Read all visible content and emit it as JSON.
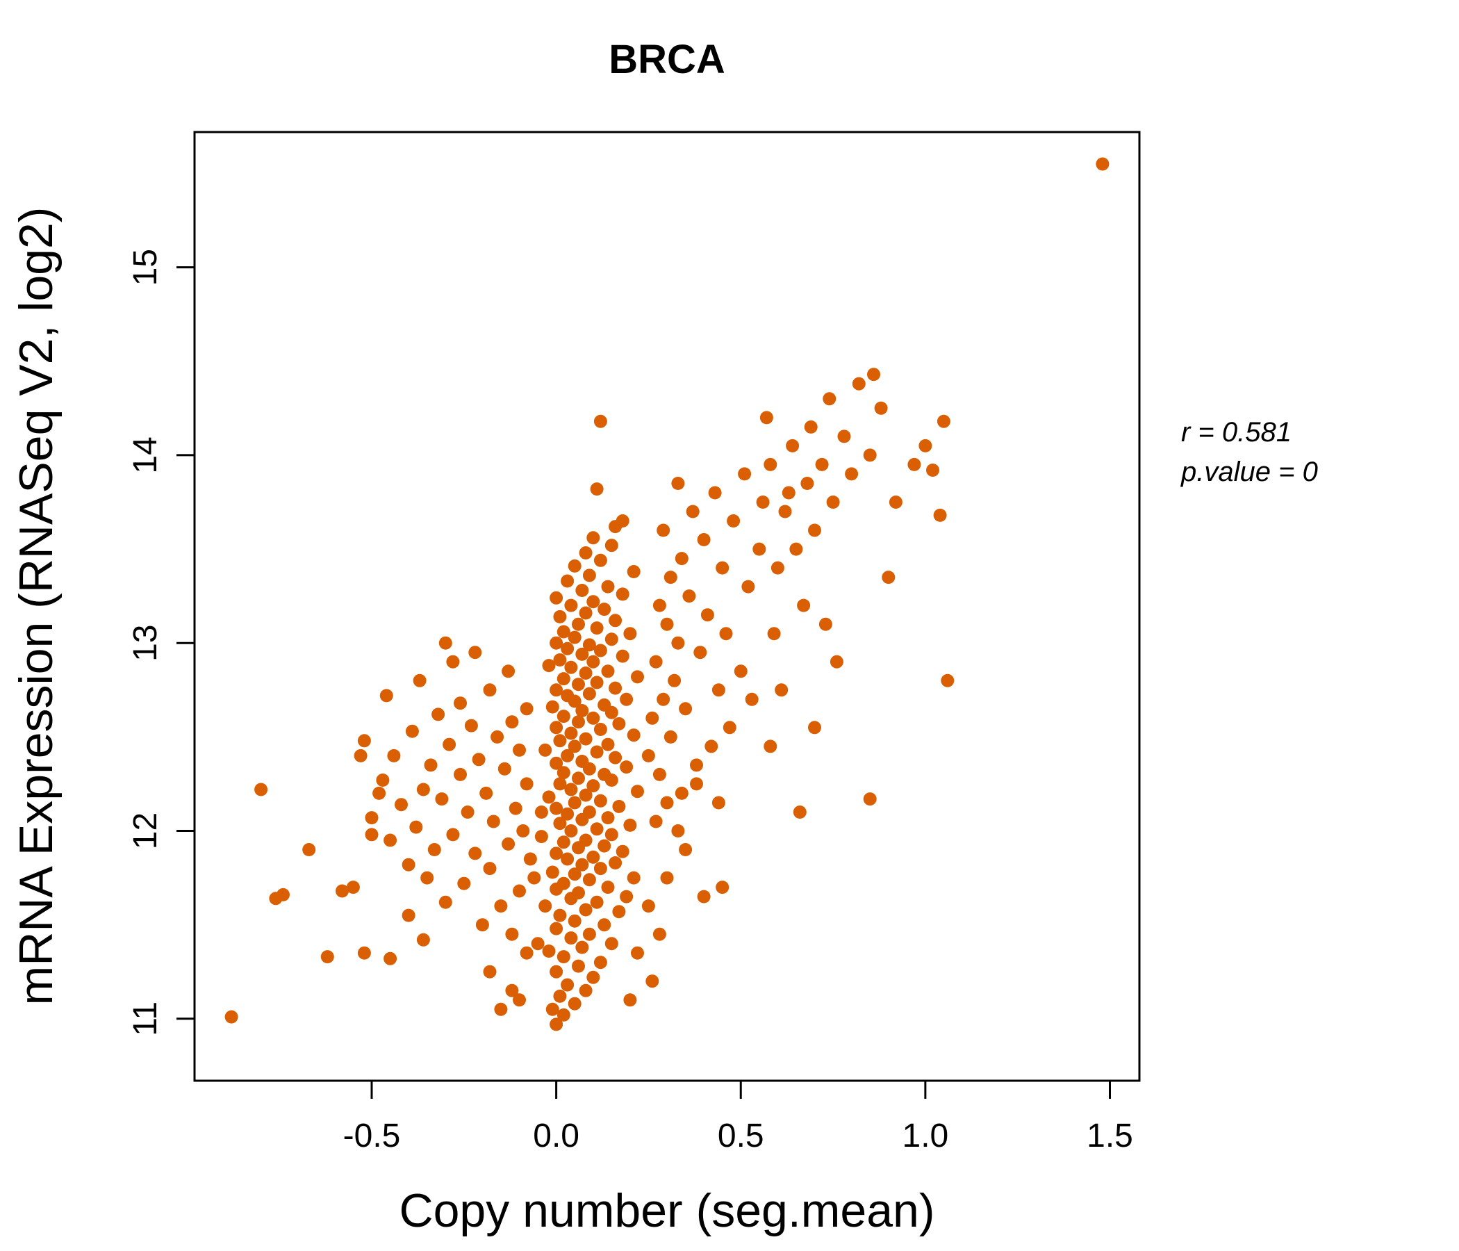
{
  "title": "BRCA",
  "annotation": {
    "line1": "r = 0.581",
    "line2": "p.value = 0"
  },
  "colors": {
    "point": "#D95F02",
    "title": "#D95F02",
    "axis": "#000000"
  },
  "chart_data": {
    "type": "scatter",
    "title": "BRCA",
    "xlabel": "Copy number (seg.mean)",
    "ylabel": "mRNA Expression (RNASeq V2, log2)",
    "xlim": [
      -0.98,
      1.58
    ],
    "ylim": [
      10.67,
      15.72
    ],
    "xticks": [
      -0.5,
      0.0,
      0.5,
      1.0,
      1.5
    ],
    "xtick_labels": [
      "-0.5",
      "0.0",
      "0.5",
      "1.0",
      "1.5"
    ],
    "yticks": [
      11,
      12,
      13,
      14,
      15
    ],
    "ytick_labels": [
      "11",
      "12",
      "13",
      "14",
      "15"
    ],
    "grid": false,
    "legend": "none",
    "r": 0.581,
    "p_value": 0,
    "annotations": [
      "r = 0.581",
      "p.value = 0"
    ],
    "points": [
      [
        0.0,
        10.97
      ],
      [
        0.02,
        11.02
      ],
      [
        -0.01,
        11.05
      ],
      [
        0.05,
        11.08
      ],
      [
        0.01,
        11.12
      ],
      [
        0.08,
        11.15
      ],
      [
        0.03,
        11.18
      ],
      [
        0.1,
        11.22
      ],
      [
        0.0,
        11.25
      ],
      [
        0.06,
        11.28
      ],
      [
        0.12,
        11.3
      ],
      [
        0.02,
        11.33
      ],
      [
        -0.02,
        11.36
      ],
      [
        0.07,
        11.38
      ],
      [
        0.15,
        11.4
      ],
      [
        0.04,
        11.43
      ],
      [
        0.09,
        11.45
      ],
      [
        0.0,
        11.48
      ],
      [
        0.13,
        11.5
      ],
      [
        0.05,
        11.52
      ],
      [
        0.01,
        11.55
      ],
      [
        0.17,
        11.57
      ],
      [
        0.08,
        11.58
      ],
      [
        -0.03,
        11.6
      ],
      [
        0.11,
        11.62
      ],
      [
        0.04,
        11.64
      ],
      [
        0.19,
        11.65
      ],
      [
        0.06,
        11.67
      ],
      [
        0.0,
        11.69
      ],
      [
        0.14,
        11.7
      ],
      [
        0.02,
        11.72
      ],
      [
        0.09,
        11.74
      ],
      [
        0.21,
        11.75
      ],
      [
        0.05,
        11.77
      ],
      [
        -0.01,
        11.78
      ],
      [
        0.12,
        11.8
      ],
      [
        0.07,
        11.82
      ],
      [
        0.16,
        11.83
      ],
      [
        0.03,
        11.85
      ],
      [
        0.1,
        11.86
      ],
      [
        0.0,
        11.88
      ],
      [
        0.18,
        11.89
      ],
      [
        0.06,
        11.91
      ],
      [
        0.13,
        11.92
      ],
      [
        0.02,
        11.94
      ],
      [
        0.08,
        11.95
      ],
      [
        -0.04,
        11.97
      ],
      [
        0.15,
        11.98
      ],
      [
        0.04,
        12.0
      ],
      [
        0.11,
        12.01
      ],
      [
        0.2,
        12.03
      ],
      [
        0.01,
        12.04
      ],
      [
        0.07,
        12.06
      ],
      [
        0.14,
        12.07
      ],
      [
        0.03,
        12.09
      ],
      [
        0.09,
        12.1
      ],
      [
        0.0,
        12.12
      ],
      [
        0.17,
        12.13
      ],
      [
        0.05,
        12.15
      ],
      [
        0.12,
        12.16
      ],
      [
        -0.02,
        12.18
      ],
      [
        0.08,
        12.19
      ],
      [
        0.22,
        12.21
      ],
      [
        0.04,
        12.22
      ],
      [
        0.1,
        12.24
      ],
      [
        0.01,
        12.25
      ],
      [
        0.15,
        12.27
      ],
      [
        0.06,
        12.28
      ],
      [
        0.13,
        12.3
      ],
      [
        0.02,
        12.31
      ],
      [
        0.09,
        12.33
      ],
      [
        0.19,
        12.34
      ],
      [
        0.0,
        12.36
      ],
      [
        0.07,
        12.37
      ],
      [
        0.16,
        12.39
      ],
      [
        0.03,
        12.4
      ],
      [
        0.11,
        12.42
      ],
      [
        -0.03,
        12.43
      ],
      [
        0.05,
        12.45
      ],
      [
        0.14,
        12.46
      ],
      [
        0.01,
        12.48
      ],
      [
        0.08,
        12.49
      ],
      [
        0.21,
        12.51
      ],
      [
        0.04,
        12.52
      ],
      [
        0.12,
        12.54
      ],
      [
        0.0,
        12.55
      ],
      [
        0.17,
        12.57
      ],
      [
        0.06,
        12.58
      ],
      [
        0.1,
        12.6
      ],
      [
        0.02,
        12.61
      ],
      [
        0.15,
        12.63
      ],
      [
        0.07,
        12.64
      ],
      [
        -0.01,
        12.66
      ],
      [
        0.13,
        12.67
      ],
      [
        0.05,
        12.69
      ],
      [
        0.19,
        12.7
      ],
      [
        0.03,
        12.72
      ],
      [
        0.09,
        12.73
      ],
      [
        0.0,
        12.75
      ],
      [
        0.16,
        12.76
      ],
      [
        0.06,
        12.78
      ],
      [
        0.11,
        12.79
      ],
      [
        0.02,
        12.81
      ],
      [
        0.22,
        12.82
      ],
      [
        0.08,
        12.84
      ],
      [
        0.14,
        12.85
      ],
      [
        0.04,
        12.87
      ],
      [
        -0.02,
        12.88
      ],
      [
        0.1,
        12.9
      ],
      [
        0.01,
        12.91
      ],
      [
        0.18,
        12.93
      ],
      [
        0.07,
        12.94
      ],
      [
        0.12,
        12.96
      ],
      [
        0.03,
        12.97
      ],
      [
        0.09,
        12.99
      ],
      [
        0.0,
        13.0
      ],
      [
        0.15,
        13.02
      ],
      [
        0.05,
        13.03
      ],
      [
        0.2,
        13.05
      ],
      [
        0.02,
        13.06
      ],
      [
        0.11,
        13.08
      ],
      [
        0.06,
        13.1
      ],
      [
        0.16,
        13.12
      ],
      [
        0.01,
        13.14
      ],
      [
        0.08,
        13.16
      ],
      [
        0.13,
        13.18
      ],
      [
        0.04,
        13.2
      ],
      [
        0.1,
        13.22
      ],
      [
        0.0,
        13.24
      ],
      [
        0.18,
        13.26
      ],
      [
        0.07,
        13.28
      ],
      [
        0.14,
        13.3
      ],
      [
        0.03,
        13.33
      ],
      [
        0.09,
        13.36
      ],
      [
        0.21,
        13.38
      ],
      [
        0.05,
        13.41
      ],
      [
        0.12,
        13.44
      ],
      [
        0.08,
        13.48
      ],
      [
        0.15,
        13.52
      ],
      [
        0.1,
        13.56
      ],
      [
        0.12,
        14.18
      ],
      [
        0.11,
        13.82
      ],
      [
        0.16,
        13.62
      ],
      [
        0.18,
        13.65
      ],
      [
        -0.08,
        11.35
      ],
      [
        -0.12,
        11.45
      ],
      [
        -0.2,
        11.5
      ],
      [
        -0.15,
        11.6
      ],
      [
        -0.3,
        11.62
      ],
      [
        -0.1,
        11.68
      ],
      [
        -0.25,
        11.72
      ],
      [
        -0.35,
        11.75
      ],
      [
        -0.18,
        11.8
      ],
      [
        -0.4,
        11.82
      ],
      [
        -0.07,
        11.85
      ],
      [
        -0.22,
        11.88
      ],
      [
        -0.33,
        11.9
      ],
      [
        -0.13,
        11.93
      ],
      [
        -0.45,
        11.95
      ],
      [
        -0.28,
        11.98
      ],
      [
        -0.09,
        12.0
      ],
      [
        -0.38,
        12.02
      ],
      [
        -0.17,
        12.05
      ],
      [
        -0.5,
        12.07
      ],
      [
        -0.24,
        12.1
      ],
      [
        -0.11,
        12.12
      ],
      [
        -0.42,
        12.14
      ],
      [
        -0.31,
        12.17
      ],
      [
        -0.19,
        12.2
      ],
      [
        -0.36,
        12.22
      ],
      [
        -0.08,
        12.25
      ],
      [
        -0.47,
        12.27
      ],
      [
        -0.26,
        12.3
      ],
      [
        -0.14,
        12.33
      ],
      [
        -0.34,
        12.35
      ],
      [
        -0.21,
        12.38
      ],
      [
        -0.44,
        12.4
      ],
      [
        -0.1,
        12.43
      ],
      [
        -0.29,
        12.46
      ],
      [
        -0.52,
        12.48
      ],
      [
        -0.16,
        12.5
      ],
      [
        -0.39,
        12.53
      ],
      [
        -0.23,
        12.56
      ],
      [
        -0.12,
        12.58
      ],
      [
        -0.32,
        12.62
      ],
      [
        -0.08,
        12.65
      ],
      [
        -0.26,
        12.68
      ],
      [
        -0.46,
        12.72
      ],
      [
        -0.18,
        12.75
      ],
      [
        -0.37,
        12.8
      ],
      [
        -0.13,
        12.85
      ],
      [
        -0.28,
        12.9
      ],
      [
        -0.22,
        12.95
      ],
      [
        -0.3,
        13.0
      ],
      [
        -0.52,
        11.35
      ],
      [
        -0.45,
        11.32
      ],
      [
        -0.4,
        11.55
      ],
      [
        -0.36,
        11.42
      ],
      [
        -0.55,
        11.7
      ],
      [
        -0.48,
        12.2
      ],
      [
        -0.53,
        12.4
      ],
      [
        -0.12,
        11.15
      ],
      [
        -0.15,
        11.05
      ],
      [
        -0.1,
        11.1
      ],
      [
        -0.18,
        11.25
      ],
      [
        -0.05,
        11.4
      ],
      [
        -0.06,
        11.75
      ],
      [
        -0.04,
        12.1
      ],
      [
        0.27,
        12.05
      ],
      [
        0.3,
        12.15
      ],
      [
        0.34,
        12.2
      ],
      [
        0.28,
        12.3
      ],
      [
        0.38,
        12.35
      ],
      [
        0.25,
        12.4
      ],
      [
        0.42,
        12.45
      ],
      [
        0.31,
        12.5
      ],
      [
        0.47,
        12.55
      ],
      [
        0.26,
        12.6
      ],
      [
        0.35,
        12.65
      ],
      [
        0.29,
        12.7
      ],
      [
        0.44,
        12.75
      ],
      [
        0.32,
        12.8
      ],
      [
        0.5,
        12.85
      ],
      [
        0.27,
        12.9
      ],
      [
        0.39,
        12.95
      ],
      [
        0.33,
        13.0
      ],
      [
        0.46,
        13.05
      ],
      [
        0.3,
        13.1
      ],
      [
        0.41,
        13.15
      ],
      [
        0.28,
        13.2
      ],
      [
        0.36,
        13.25
      ],
      [
        0.52,
        13.3
      ],
      [
        0.31,
        13.35
      ],
      [
        0.45,
        13.4
      ],
      [
        0.34,
        13.45
      ],
      [
        0.55,
        13.5
      ],
      [
        0.4,
        13.55
      ],
      [
        0.29,
        13.6
      ],
      [
        0.48,
        13.65
      ],
      [
        0.37,
        13.7
      ],
      [
        0.56,
        13.75
      ],
      [
        0.43,
        13.8
      ],
      [
        0.33,
        13.85
      ],
      [
        0.51,
        13.9
      ],
      [
        0.58,
        13.95
      ],
      [
        0.38,
        12.25
      ],
      [
        0.53,
        12.7
      ],
      [
        0.44,
        12.15
      ],
      [
        0.25,
        11.6
      ],
      [
        0.3,
        11.75
      ],
      [
        0.35,
        11.9
      ],
      [
        0.28,
        11.45
      ],
      [
        0.4,
        11.65
      ],
      [
        0.22,
        11.35
      ],
      [
        0.26,
        11.2
      ],
      [
        0.33,
        12.0
      ],
      [
        0.45,
        11.7
      ],
      [
        0.2,
        11.1
      ],
      [
        0.6,
        13.4
      ],
      [
        0.65,
        13.5
      ],
      [
        0.7,
        13.6
      ],
      [
        0.62,
        13.7
      ],
      [
        0.75,
        13.75
      ],
      [
        0.68,
        13.85
      ],
      [
        0.8,
        13.9
      ],
      [
        0.72,
        13.95
      ],
      [
        0.85,
        14.0
      ],
      [
        0.64,
        14.05
      ],
      [
        0.78,
        14.1
      ],
      [
        0.57,
        14.2
      ],
      [
        0.88,
        14.25
      ],
      [
        0.74,
        14.3
      ],
      [
        0.82,
        14.38
      ],
      [
        0.86,
        14.43
      ],
      [
        0.92,
        13.75
      ],
      [
        0.97,
        13.95
      ],
      [
        1.0,
        14.05
      ],
      [
        1.05,
        14.18
      ],
      [
        1.02,
        13.92
      ],
      [
        1.04,
        13.68
      ],
      [
        1.06,
        12.8
      ],
      [
        0.9,
        13.35
      ],
      [
        0.76,
        12.9
      ],
      [
        0.7,
        12.55
      ],
      [
        0.66,
        12.1
      ],
      [
        0.85,
        12.17
      ],
      [
        0.73,
        13.1
      ],
      [
        0.61,
        12.75
      ],
      [
        0.59,
        13.05
      ],
      [
        0.63,
        13.8
      ],
      [
        0.67,
        13.2
      ],
      [
        0.58,
        12.45
      ],
      [
        0.69,
        14.15
      ],
      [
        1.48,
        15.55
      ],
      [
        -0.88,
        11.01
      ],
      [
        -0.8,
        12.22
      ],
      [
        -0.74,
        11.66
      ],
      [
        -0.76,
        11.64
      ],
      [
        -0.67,
        11.9
      ],
      [
        -0.62,
        11.33
      ],
      [
        -0.58,
        11.68
      ],
      [
        -0.5,
        11.98
      ]
    ]
  }
}
